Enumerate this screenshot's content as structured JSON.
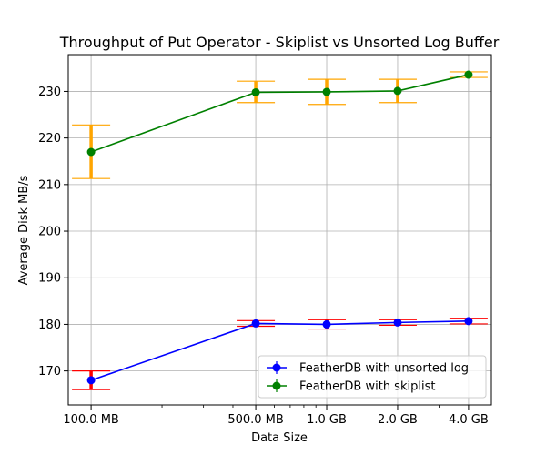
{
  "chart_data": {
    "type": "line",
    "title": "Throughput of Put Operator  - Skiplist vs Unsorted Log Buffer",
    "xlabel": "Data Size",
    "ylabel": "Average Disk MB/s",
    "x_scale": "log",
    "x_values_mb": [
      100,
      500,
      1000,
      2000,
      4000
    ],
    "x_tick_labels": [
      "100.0 MB",
      "500.0 MB",
      "1.0 GB",
      "2.0 GB",
      "4.0 GB"
    ],
    "y_ticks": [
      170,
      180,
      190,
      200,
      210,
      220,
      230
    ],
    "ylim": [
      162.7,
      237.9
    ],
    "grid": true,
    "legend_position": "lower right",
    "series": [
      {
        "name": "FeatherDB with unsorted log",
        "color": "#0000ff",
        "errorbar_color": "#ff0000",
        "values": [
          168.0,
          180.2,
          180.0,
          180.4,
          180.7
        ],
        "error_low": [
          166.0,
          179.6,
          179.0,
          179.8,
          180.1
        ],
        "error_high": [
          170.0,
          180.8,
          181.0,
          181.0,
          181.3
        ]
      },
      {
        "name": "FeatherDB with skiplist",
        "color": "#008000",
        "errorbar_color": "#ffa500",
        "values": [
          217.0,
          229.8,
          229.9,
          230.1,
          233.6
        ],
        "error_low": [
          211.3,
          227.6,
          227.2,
          227.6,
          233.0
        ],
        "error_high": [
          222.8,
          232.2,
          232.6,
          232.6,
          234.2
        ]
      }
    ]
  }
}
